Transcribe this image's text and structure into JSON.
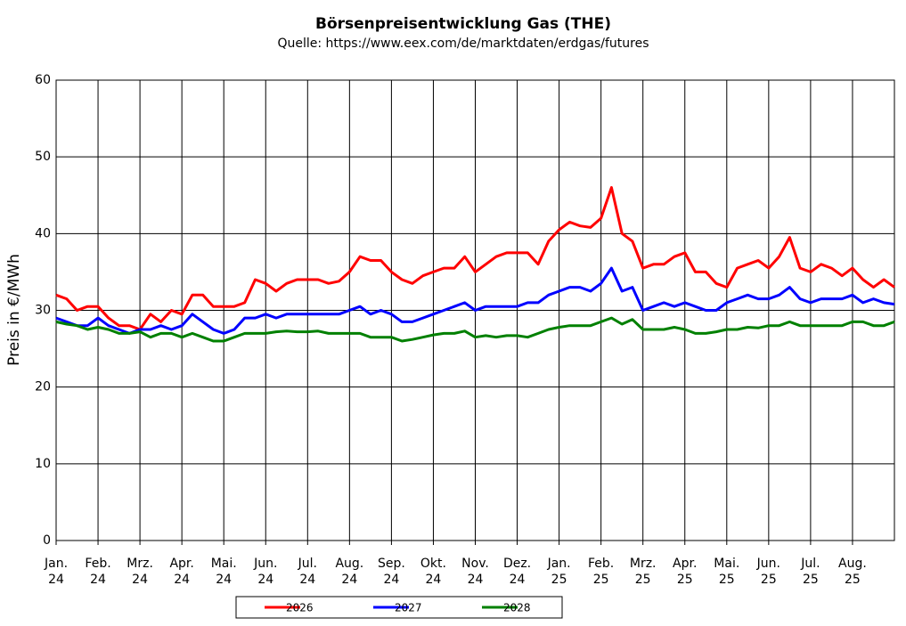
{
  "chart_data": {
    "type": "line",
    "title": "Börsenpreisentwicklung Gas (THE)",
    "subtitle": "Quelle: https://www.eex.com/de/marktdaten/erdgas/futures",
    "y_label": "Preis in €/MWh",
    "xlim": [
      0,
      20
    ],
    "ylim": [
      0,
      60
    ],
    "yticks": [
      0,
      10,
      20,
      30,
      40,
      50,
      60
    ],
    "grid": true,
    "xticks": [
      {
        "value": 0,
        "label": "Jan.\n24"
      },
      {
        "value": 1,
        "label": "Feb.\n24"
      },
      {
        "value": 2,
        "label": "Mrz.\n24"
      },
      {
        "value": 3,
        "label": "Apr.\n24"
      },
      {
        "value": 4,
        "label": "Mai.\n24"
      },
      {
        "value": 5,
        "label": "Jun.\n24"
      },
      {
        "value": 6,
        "label": "Jul.\n24"
      },
      {
        "value": 7,
        "label": "Aug.\n24"
      },
      {
        "value": 8,
        "label": "Sep.\n24"
      },
      {
        "value": 9,
        "label": "Okt.\n24"
      },
      {
        "value": 10,
        "label": "Nov.\n24"
      },
      {
        "value": 11,
        "label": "Dez.\n24"
      },
      {
        "value": 12,
        "label": "Jan.\n25"
      },
      {
        "value": 13,
        "label": "Feb.\n25"
      },
      {
        "value": 14,
        "label": "Mrz.\n25"
      },
      {
        "value": 15,
        "label": "Apr.\n25"
      },
      {
        "value": 16,
        "label": "Mai.\n25"
      },
      {
        "value": 17,
        "label": "Jun.\n25"
      },
      {
        "value": 18,
        "label": "Jul.\n25"
      },
      {
        "value": 19,
        "label": "Aug.\n25"
      }
    ],
    "x": [
      0,
      0.25,
      0.5,
      0.75,
      1,
      1.25,
      1.5,
      1.75,
      2,
      2.25,
      2.5,
      2.75,
      3,
      3.25,
      3.5,
      3.75,
      4,
      4.25,
      4.5,
      4.75,
      5,
      5.25,
      5.5,
      5.75,
      6,
      6.25,
      6.5,
      6.75,
      7,
      7.25,
      7.5,
      7.75,
      8,
      8.25,
      8.5,
      8.75,
      9,
      9.25,
      9.5,
      9.75,
      10,
      10.25,
      10.5,
      10.75,
      11,
      11.25,
      11.5,
      11.75,
      12,
      12.25,
      12.5,
      12.75,
      13,
      13.25,
      13.5,
      13.75,
      14,
      14.25,
      14.5,
      14.75,
      15,
      15.25,
      15.5,
      15.75,
      16,
      16.25,
      16.5,
      16.75,
      17,
      17.25,
      17.5,
      17.75,
      18,
      18.25,
      18.5,
      18.75,
      19,
      19.25,
      19.5,
      19.75,
      20
    ],
    "series": [
      {
        "name": "2026",
        "color": "#ff0000",
        "values": [
          32,
          31.5,
          30,
          30.5,
          30.5,
          29,
          28,
          28,
          27.5,
          29.5,
          28.5,
          30,
          29.5,
          32,
          32,
          30.5,
          30.5,
          30.5,
          31,
          34,
          33.5,
          32.5,
          33.5,
          34,
          34,
          34,
          33.5,
          33.8,
          35,
          37,
          36.5,
          36.5,
          35,
          34,
          33.5,
          34.5,
          35,
          35.5,
          35.5,
          37,
          35,
          36,
          37,
          37.5,
          37.5,
          37.5,
          36,
          39,
          40.5,
          41.5,
          41,
          40.8,
          42,
          46,
          40,
          39,
          35.5,
          36,
          36,
          37,
          37.5,
          35,
          35,
          33.5,
          33,
          35.5,
          36,
          36.5,
          35.5,
          37,
          39.5,
          35.5,
          35,
          36,
          35.5,
          34.5,
          35.5,
          34,
          33,
          34,
          33
        ]
      },
      {
        "name": "2027",
        "color": "#0000ff",
        "values": [
          29,
          28.5,
          28,
          28,
          29,
          28,
          27.5,
          27,
          27.5,
          27.5,
          28,
          27.5,
          28,
          29.5,
          28.5,
          27.5,
          27,
          27.5,
          29,
          29,
          29.5,
          29,
          29.5,
          29.5,
          29.5,
          29.5,
          29.5,
          29.5,
          30,
          30.5,
          29.5,
          30,
          29.5,
          28.5,
          28.5,
          29,
          29.5,
          30,
          30.5,
          31,
          30,
          30.5,
          30.5,
          30.5,
          30.5,
          31,
          31,
          32,
          32.5,
          33,
          33,
          32.5,
          33.5,
          35.5,
          32.5,
          33,
          30,
          30.5,
          31,
          30.5,
          31,
          30.5,
          30,
          30,
          31,
          31.5,
          32,
          31.5,
          31.5,
          32,
          33,
          31.5,
          31,
          31.5,
          31.5,
          31.5,
          32,
          31,
          31.5,
          31,
          30.8
        ]
      },
      {
        "name": "2028",
        "color": "#008000",
        "values": [
          28.5,
          28.2,
          28,
          27.5,
          27.8,
          27.5,
          27,
          27,
          27.2,
          26.5,
          27,
          27,
          26.5,
          27,
          26.5,
          26,
          26,
          26.5,
          27,
          27,
          27,
          27.2,
          27.3,
          27.2,
          27.2,
          27.3,
          27,
          27,
          27,
          27,
          26.5,
          26.5,
          26.5,
          26,
          26.2,
          26.5,
          26.8,
          27,
          27,
          27.3,
          26.5,
          26.7,
          26.5,
          26.7,
          26.7,
          26.5,
          27,
          27.5,
          27.8,
          28,
          28,
          28,
          28.5,
          29,
          28.2,
          28.8,
          27.5,
          27.5,
          27.5,
          27.8,
          27.5,
          27,
          27,
          27.2,
          27.5,
          27.5,
          27.8,
          27.7,
          28,
          28,
          28.5,
          28,
          28,
          28,
          28,
          28,
          28.5,
          28.5,
          28,
          28,
          28.5
        ]
      }
    ]
  }
}
